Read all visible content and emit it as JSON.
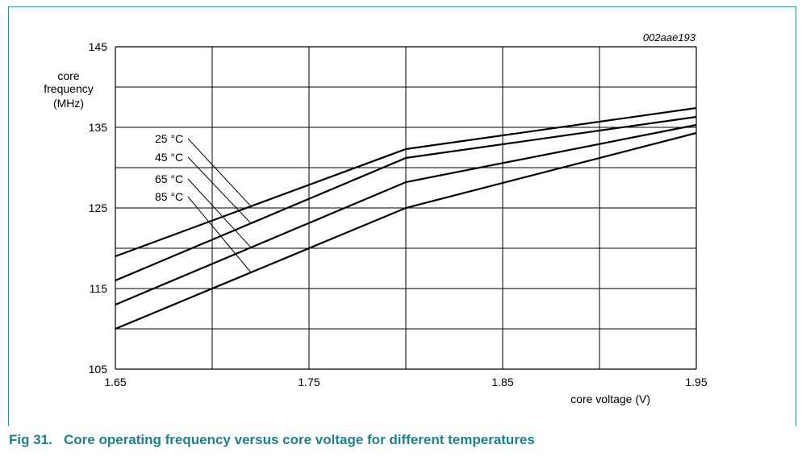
{
  "figure": {
    "code": "002aae193",
    "caption": "Fig 31.   Core operating frequency versus core voltage for different temperatures"
  },
  "colors": {
    "frame": "#2f8f93",
    "caption": "#1f7f8a",
    "lines": "#000000"
  },
  "chart_data": {
    "type": "line",
    "title": "",
    "xlabel": "core voltage (V)",
    "ylabel": [
      "core",
      "frequency",
      "(MHz)"
    ],
    "xlim": [
      1.65,
      1.95
    ],
    "ylim": [
      105,
      145
    ],
    "xticks": [
      "1.65",
      "1.75",
      "1.85",
      "1.95"
    ],
    "yticks": [
      "105",
      "115",
      "125",
      "135",
      "145"
    ],
    "grid": true,
    "series": [
      {
        "name": "25 °C",
        "x": [
          1.65,
          1.8,
          1.95
        ],
        "y": [
          119,
          132.3,
          137.4
        ]
      },
      {
        "name": "45 °C",
        "x": [
          1.65,
          1.8,
          1.95
        ],
        "y": [
          116,
          131.2,
          136.3
        ]
      },
      {
        "name": "65 °C",
        "x": [
          1.65,
          1.8,
          1.95
        ],
        "y": [
          113,
          128.2,
          135.3
        ]
      },
      {
        "name": "85 °C",
        "x": [
          1.65,
          1.8,
          1.95
        ],
        "y": [
          110,
          125,
          134.3
        ]
      }
    ]
  }
}
